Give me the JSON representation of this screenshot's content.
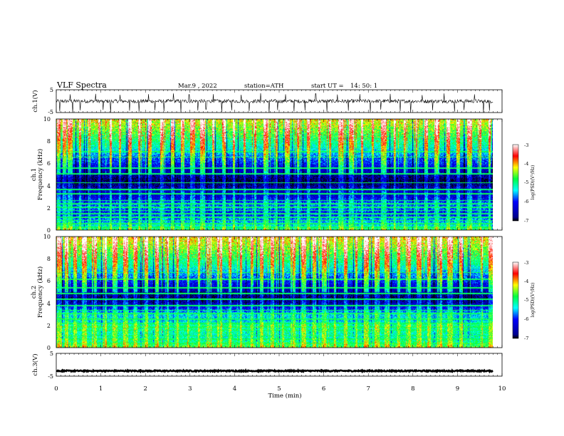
{
  "header": {
    "title": "VLF  Spectra",
    "date": "Mar.9   , 2022",
    "station": "station=ATH",
    "start_label": "start  UT  =",
    "start_time": "14: 50: 1"
  },
  "chart_data": [
    {
      "type": "line",
      "panel": "ch1-waveform",
      "ylabel": "ch.1(V)",
      "ylim": [
        -5,
        5
      ],
      "yticks": [
        "5",
        "-5"
      ],
      "xlim": [
        0,
        10
      ],
      "baseline": 0,
      "noise_amplitude": 0.8,
      "spikes": [
        {
          "t": 0.08,
          "v": -4.5
        },
        {
          "t": 0.31,
          "v": 3.0
        },
        {
          "t": 0.37,
          "v": -5
        },
        {
          "t": 0.54,
          "v": -4.0
        },
        {
          "t": 0.88,
          "v": 3.2
        },
        {
          "t": 1.05,
          "v": -3.8
        },
        {
          "t": 1.22,
          "v": -5
        },
        {
          "t": 1.43,
          "v": 2.8
        },
        {
          "t": 1.64,
          "v": -4.2
        },
        {
          "t": 1.86,
          "v": -4.6
        },
        {
          "t": 2.07,
          "v": 3.1
        },
        {
          "t": 2.21,
          "v": -4.0
        },
        {
          "t": 2.42,
          "v": -4.4
        },
        {
          "t": 2.63,
          "v": 3.4
        },
        {
          "t": 2.8,
          "v": -4.8
        },
        {
          "t": 2.98,
          "v": 2.9
        },
        {
          "t": 3.18,
          "v": -4.1
        },
        {
          "t": 3.36,
          "v": -3.6
        },
        {
          "t": 3.52,
          "v": 3.1
        },
        {
          "t": 3.71,
          "v": -4.7
        },
        {
          "t": 3.94,
          "v": -4.0
        },
        {
          "t": 4.15,
          "v": 2.8
        },
        {
          "t": 4.33,
          "v": -4.3
        },
        {
          "t": 4.58,
          "v": 3.5
        },
        {
          "t": 4.77,
          "v": -5
        },
        {
          "t": 4.96,
          "v": -3.9
        },
        {
          "t": 5.14,
          "v": 3.0
        },
        {
          "t": 5.33,
          "v": -4.5
        },
        {
          "t": 5.58,
          "v": -4.1
        },
        {
          "t": 5.82,
          "v": 3.3
        },
        {
          "t": 6.07,
          "v": -4.6
        },
        {
          "t": 6.31,
          "v": 2.9
        },
        {
          "t": 6.55,
          "v": -4.2
        },
        {
          "t": 6.81,
          "v": 3.1
        },
        {
          "t": 7.04,
          "v": -4.8
        },
        {
          "t": 7.28,
          "v": -3.7
        },
        {
          "t": 7.49,
          "v": 3.2
        },
        {
          "t": 7.72,
          "v": -4.4
        },
        {
          "t": 7.95,
          "v": -5
        },
        {
          "t": 8.21,
          "v": 2.7
        },
        {
          "t": 8.44,
          "v": -4.0
        },
        {
          "t": 8.7,
          "v": 3.4
        },
        {
          "t": 8.93,
          "v": -4.6
        },
        {
          "t": 9.15,
          "v": -3.9
        },
        {
          "t": 9.38,
          "v": 3.0
        },
        {
          "t": 9.58,
          "v": -5
        },
        {
          "t": 9.72,
          "v": -4.2
        }
      ]
    },
    {
      "type": "heatmap",
      "panel": "ch1-spectrogram",
      "ylabel": "ch.1\nFrequency (kHz)",
      "ylim": [
        0,
        10
      ],
      "yticks": [
        "0",
        "2",
        "4",
        "6",
        "8",
        "10"
      ],
      "xlim": [
        0,
        10
      ],
      "colorbar_label": "log(PSD)(V²/Hz)",
      "colorbar_ticks": [
        "-3",
        "-4",
        "-5",
        "-6",
        "-7"
      ],
      "colorbar_range": [
        -7,
        -3
      ],
      "profile_freq_khz": [
        0,
        0.5,
        1,
        1.5,
        2,
        2.5,
        3,
        3.5,
        4,
        4.5,
        5,
        5.5,
        6,
        6.5,
        7,
        7.5,
        8,
        8.5,
        9,
        9.5,
        10
      ],
      "profile_log_psd": [
        -4.8,
        -5.4,
        -5.7,
        -6.1,
        -5.8,
        -5.9,
        -6.3,
        -6.4,
        -6.7,
        -6.9,
        -6.6,
        -6.4,
        -6.0,
        -5.8,
        -5.5,
        -5.2,
        -5.0,
        -4.8,
        -4.6,
        -4.4,
        -4.2
      ],
      "hum_lines_khz": [
        0.3,
        0.6,
        0.9,
        1.2,
        1.5,
        1.8,
        2.1,
        2.4,
        2.7,
        3.3,
        3.7,
        4.3,
        5.1,
        5.6,
        6.6,
        7.1
      ],
      "vertical_bursts_min": [
        0.05,
        0.18,
        0.31,
        0.52,
        0.74,
        0.96,
        1.21,
        1.42,
        1.65,
        1.87,
        2.09,
        2.36,
        2.61,
        2.83,
        3.05,
        3.27,
        3.52,
        3.76,
        3.98,
        4.21,
        4.46,
        4.69,
        4.93,
        5.18,
        5.41,
        5.66,
        5.89,
        6.14,
        6.37,
        6.61,
        6.86,
        7.09,
        7.33,
        7.58,
        7.81,
        8.06,
        8.29,
        8.53,
        8.78,
        9.01,
        9.26,
        9.49,
        9.71
      ]
    },
    {
      "type": "heatmap",
      "panel": "ch2-spectrogram",
      "ylabel": "ch.2\nFrequency (kHz)",
      "ylim": [
        0,
        10
      ],
      "yticks": [
        "0",
        "2",
        "4",
        "6",
        "8",
        "10"
      ],
      "xlim": [
        0,
        10
      ],
      "colorbar_label": "log(PSD)(V²/Hz)",
      "colorbar_ticks": [
        "-3",
        "-4",
        "-5",
        "-6",
        "-7"
      ],
      "colorbar_range": [
        -7,
        -3
      ],
      "profile_freq_khz": [
        0,
        0.5,
        1,
        1.5,
        2,
        2.5,
        3,
        3.5,
        4,
        4.5,
        5,
        5.5,
        6,
        6.5,
        7,
        7.5,
        8,
        8.5,
        9,
        9.5,
        10
      ],
      "profile_log_psd": [
        -4.6,
        -5.0,
        -5.2,
        -5.1,
        -5.0,
        -5.5,
        -5.4,
        -6.0,
        -6.5,
        -6.8,
        -6.6,
        -6.3,
        -6.0,
        -5.7,
        -5.4,
        -5.1,
        -4.9,
        -4.7,
        -4.5,
        -4.3,
        -4.1
      ],
      "hum_lines_khz": [
        0.4,
        0.8,
        1.1,
        1.6,
        1.9,
        2.2,
        2.6,
        3.1,
        3.4,
        3.8,
        4.4,
        4.9,
        5.4,
        6.2,
        6.8
      ],
      "vertical_bursts_min": [
        0.07,
        0.22,
        0.41,
        0.63,
        0.85,
        1.08,
        1.31,
        1.55,
        1.78,
        2.02,
        2.25,
        2.49,
        2.72,
        2.96,
        3.19,
        3.43,
        3.66,
        3.9,
        4.13,
        4.37,
        4.6,
        4.84,
        5.07,
        5.31,
        5.54,
        5.78,
        6.01,
        6.25,
        6.48,
        6.72,
        6.95,
        7.19,
        7.42,
        7.66,
        7.89,
        8.13,
        8.36,
        8.6,
        8.83,
        9.07,
        9.3,
        9.54,
        9.74
      ]
    },
    {
      "type": "line",
      "panel": "ch3-waveform",
      "ylabel": "ch.3(V)",
      "ylim": [
        -5,
        5
      ],
      "yticks": [
        "5",
        "-5"
      ],
      "xlim": [
        0,
        10
      ],
      "xlabel": "Time  (min)",
      "xticks": [
        "0",
        "1",
        "2",
        "3",
        "4",
        "5",
        "6",
        "7",
        "8",
        "9",
        "10"
      ],
      "baseline": -2.7,
      "noise_amplitude": 0.25,
      "spikes": []
    }
  ]
}
